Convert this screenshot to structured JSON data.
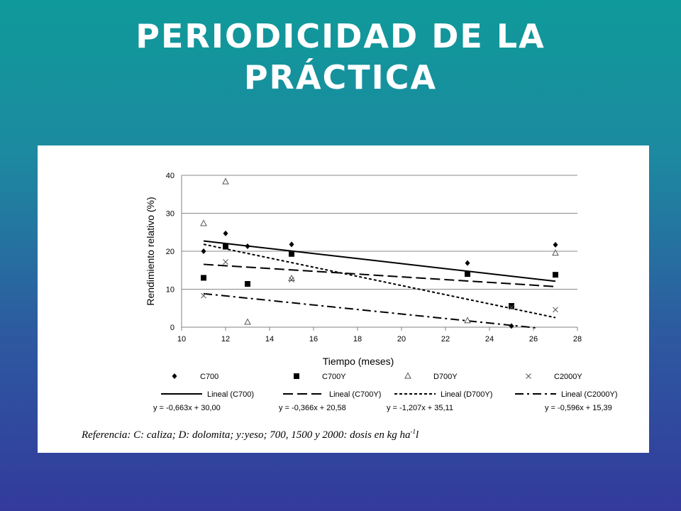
{
  "slide": {
    "title_line1": "PERIODICIDAD DE LA",
    "title_line2": "PRÁCTICA"
  },
  "reference": {
    "text": "Referencia: C: caliza; D: dolomita; y:yeso; 700, 1500 y 2000: dosis en kg ha",
    "superscript": "-1"
  },
  "colors": {
    "background_top": "#0f9a9a",
    "background_bottom": "#333a9c",
    "title": "#ffffff",
    "panel": "#ffffff",
    "series": "#000000"
  },
  "chart_data": {
    "type": "scatter",
    "xlabel": "Tiempo (meses)",
    "ylabel": "Rendimiento relativo (%)",
    "xlim": [
      10,
      28
    ],
    "ylim": [
      0,
      40
    ],
    "xticks": [
      "10",
      "12",
      "14",
      "16",
      "18",
      "20",
      "22",
      "24",
      "26",
      "28"
    ],
    "yticks": [
      "0",
      "10",
      "20",
      "30",
      "40"
    ],
    "grid": "horizontal",
    "legend_position": "bottom",
    "series": [
      {
        "name": "C700",
        "marker": "diamond",
        "points": [
          [
            11,
            20
          ],
          [
            12,
            24.7
          ],
          [
            13,
            21.3
          ],
          [
            15,
            21.8
          ],
          [
            23,
            16.9
          ],
          [
            25,
            0.3
          ],
          [
            27,
            21.7
          ]
        ],
        "trend": {
          "name": "Lineal (C700)",
          "slope": -0.663,
          "intercept": 30.0,
          "dash": "solid",
          "x_range": [
            11,
            27
          ],
          "equation": "y = -0,663x + 30,00"
        }
      },
      {
        "name": "C700Y",
        "marker": "square",
        "points": [
          [
            11,
            13
          ],
          [
            12,
            21.2
          ],
          [
            13,
            11.4
          ],
          [
            15,
            19.3
          ],
          [
            23,
            14
          ],
          [
            25,
            5.6
          ],
          [
            27,
            13.8
          ]
        ],
        "trend": {
          "name": "Lineal (C700Y)",
          "slope": -0.366,
          "intercept": 20.58,
          "dash": "long-dash",
          "x_range": [
            11,
            27
          ],
          "equation": "y = -0,366x + 20,58"
        }
      },
      {
        "name": "D700Y",
        "marker": "triangle",
        "points": [
          [
            11,
            27.3
          ],
          [
            12,
            38.3
          ],
          [
            13,
            1.3
          ],
          [
            15,
            12.8
          ],
          [
            23,
            1.7
          ],
          [
            27,
            19.5
          ]
        ],
        "trend": {
          "name": "Lineal (D700Y)",
          "slope": -1.207,
          "intercept": 35.11,
          "dash": "short-dash",
          "x_range": [
            11,
            27
          ],
          "equation": "y = -1,207x + 35,11"
        }
      },
      {
        "name": "C2000Y",
        "marker": "cross",
        "points": [
          [
            11,
            8.3
          ],
          [
            12,
            17.2
          ],
          [
            15,
            12.5
          ],
          [
            25,
            5.2
          ],
          [
            27,
            4.6
          ]
        ],
        "trend": {
          "name": "Lineal (C2000Y)",
          "slope": -0.596,
          "intercept": 15.39,
          "dash": "dash-dot",
          "x_range": [
            11,
            26.1
          ],
          "equation": "y = -0,596x + 15,39"
        }
      }
    ]
  }
}
